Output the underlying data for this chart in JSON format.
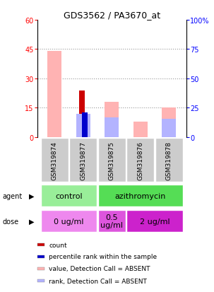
{
  "title": "GDS3562 / PA3670_at",
  "samples": [
    "GSM319874",
    "GSM319877",
    "GSM319875",
    "GSM319876",
    "GSM319878"
  ],
  "count_values": [
    0,
    24,
    0,
    0,
    0
  ],
  "percentile_values": [
    0,
    21,
    0,
    0,
    0
  ],
  "value_absent": [
    44,
    0,
    18,
    8,
    15
  ],
  "rank_absent": [
    0,
    20,
    17,
    0,
    15.5
  ],
  "count_color": "#cc0000",
  "percentile_color": "#0000cc",
  "value_absent_color": "#ffb3b3",
  "rank_absent_color": "#b3b3ff",
  "left_ylim": [
    0,
    60
  ],
  "right_ylim": [
    0,
    100
  ],
  "left_yticks": [
    0,
    15,
    30,
    45,
    60
  ],
  "right_yticks": [
    0,
    25,
    50,
    75,
    100
  ],
  "right_yticklabels": [
    "0",
    "25",
    "50",
    "75",
    "100%"
  ],
  "agent_groups": [
    {
      "label": "control",
      "cols": [
        0,
        1
      ],
      "color": "#99ee99"
    },
    {
      "label": "azithromycin",
      "cols": [
        2,
        3,
        4
      ],
      "color": "#55dd55"
    }
  ],
  "dose_groups": [
    {
      "label": "0 ug/ml",
      "cols": [
        0,
        1
      ],
      "color": "#ee88ee"
    },
    {
      "label": "0.5\nug/ml",
      "cols": [
        2
      ],
      "color": "#dd55dd"
    },
    {
      "label": "2 ug/ml",
      "cols": [
        3,
        4
      ],
      "color": "#cc22cc"
    }
  ],
  "sample_box_color": "#cccccc",
  "legend_items": [
    {
      "label": "count",
      "color": "#cc0000"
    },
    {
      "label": "percentile rank within the sample",
      "color": "#0000cc"
    },
    {
      "label": "value, Detection Call = ABSENT",
      "color": "#ffb3b3"
    },
    {
      "label": "rank, Detection Call = ABSENT",
      "color": "#b3b3ff"
    }
  ]
}
